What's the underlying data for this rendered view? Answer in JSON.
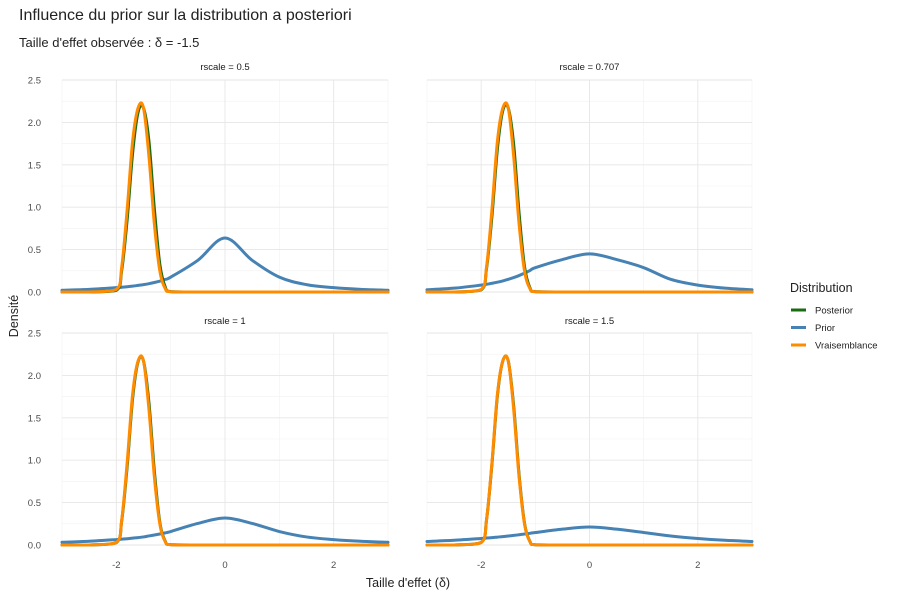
{
  "chart_data": {
    "type": "line",
    "title": "Influence du prior sur la distribution a posteriori",
    "subtitle": "Taille d'effet observée : δ = -1.5",
    "xlabel": "Taille d'effet (δ)",
    "ylabel": "Densité",
    "xlim": [
      -3,
      3
    ],
    "ylim": [
      0,
      2.5
    ],
    "x_ticks": [
      -2,
      0,
      2
    ],
    "y_ticks": [
      0.0,
      0.5,
      1.0,
      1.5,
      2.0,
      2.5
    ],
    "grid": true,
    "legend": {
      "title": "Distribution",
      "position": "right",
      "entries": [
        {
          "name": "Posterior",
          "color": "#1a6b12"
        },
        {
          "name": "Prior",
          "color": "#4682b4"
        },
        {
          "name": "Vraisemblance",
          "color": "#ff8c00"
        }
      ]
    },
    "x": [
      -3.0,
      -2.5,
      -2.0,
      -1.9,
      -1.8,
      -1.7,
      -1.6,
      -1.5,
      -1.4,
      -1.3,
      -1.2,
      -1.1,
      -1.0,
      -0.5,
      0.0,
      0.5,
      1.0,
      1.5,
      2.0,
      2.5,
      3.0
    ],
    "facets": [
      {
        "label": "rscale = 0.5",
        "series": [
          {
            "name": "Prior",
            "values": [
              0.021,
              0.031,
              0.051,
              0.056,
              0.062,
              0.069,
              0.078,
              0.087,
              0.098,
              0.112,
              0.128,
              0.149,
              0.175,
              0.374,
              0.637,
              0.374,
              0.175,
              0.087,
              0.051,
              0.031,
              0.021
            ]
          },
          {
            "name": "Posterior",
            "values": [
              0.0,
              0.0,
              0.02,
              0.26,
              0.86,
              1.64,
              2.12,
              2.17,
              1.78,
              0.98,
              0.33,
              0.06,
              0.005,
              0.0,
              0.0,
              0.0,
              0.0,
              0.0,
              0.0,
              0.0,
              0.0
            ]
          },
          {
            "name": "Vraisemblance",
            "values": [
              0.0,
              0.0,
              0.03,
              0.3,
              0.98,
              1.78,
              2.17,
              2.17,
              1.6,
              0.8,
              0.25,
              0.04,
              0.003,
              0.0,
              0.0,
              0.0,
              0.0,
              0.0,
              0.0,
              0.0,
              0.0
            ]
          }
        ]
      },
      {
        "label": "rscale = 0.707",
        "series": [
          {
            "name": "Prior",
            "values": [
              0.026,
              0.045,
              0.081,
              0.091,
              0.103,
              0.116,
              0.131,
              0.149,
              0.17,
              0.194,
              0.222,
              0.253,
              0.287,
              0.383,
              0.45,
              0.383,
              0.287,
              0.149,
              0.081,
              0.045,
              0.026
            ]
          },
          {
            "name": "Posterior",
            "values": [
              0.0,
              0.0,
              0.025,
              0.28,
              0.9,
              1.69,
              2.14,
              2.17,
              1.74,
              0.93,
              0.3,
              0.05,
              0.004,
              0.0,
              0.0,
              0.0,
              0.0,
              0.0,
              0.0,
              0.0,
              0.0
            ]
          },
          {
            "name": "Vraisemblance",
            "values": [
              0.0,
              0.0,
              0.03,
              0.3,
              0.98,
              1.78,
              2.17,
              2.17,
              1.6,
              0.8,
              0.25,
              0.04,
              0.003,
              0.0,
              0.0,
              0.0,
              0.0,
              0.0,
              0.0,
              0.0,
              0.0
            ]
          }
        ]
      },
      {
        "label": "rscale = 1",
        "series": [
          {
            "name": "Prior",
            "values": [
              0.032,
              0.044,
              0.064,
              0.069,
              0.074,
              0.081,
              0.087,
              0.095,
              0.107,
              0.118,
              0.13,
              0.143,
              0.159,
              0.254,
              0.318,
              0.254,
              0.159,
              0.095,
              0.064,
              0.044,
              0.032
            ]
          },
          {
            "name": "Posterior",
            "values": [
              0.0,
              0.0,
              0.028,
              0.29,
              0.93,
              1.73,
              2.16,
              2.17,
              1.68,
              0.87,
              0.27,
              0.045,
              0.004,
              0.0,
              0.0,
              0.0,
              0.0,
              0.0,
              0.0,
              0.0,
              0.0
            ]
          },
          {
            "name": "Vraisemblance",
            "values": [
              0.0,
              0.0,
              0.03,
              0.3,
              0.98,
              1.78,
              2.17,
              2.17,
              1.6,
              0.8,
              0.25,
              0.04,
              0.003,
              0.0,
              0.0,
              0.0,
              0.0,
              0.0,
              0.0,
              0.0,
              0.0
            ]
          }
        ]
      },
      {
        "label": "rscale = 1.5",
        "series": [
          {
            "name": "Prior",
            "values": [
              0.042,
              0.056,
              0.077,
              0.082,
              0.087,
              0.093,
              0.099,
              0.106,
              0.113,
              0.121,
              0.129,
              0.138,
              0.147,
              0.187,
              0.212,
              0.187,
              0.147,
              0.106,
              0.077,
              0.056,
              0.042
            ]
          },
          {
            "name": "Posterior",
            "values": [
              0.0,
              0.0,
              0.03,
              0.3,
              0.96,
              1.76,
              2.17,
              2.17,
              1.64,
              0.83,
              0.26,
              0.042,
              0.003,
              0.0,
              0.0,
              0.0,
              0.0,
              0.0,
              0.0,
              0.0,
              0.0
            ]
          },
          {
            "name": "Vraisemblance",
            "values": [
              0.0,
              0.0,
              0.03,
              0.3,
              0.98,
              1.78,
              2.17,
              2.17,
              1.6,
              0.8,
              0.25,
              0.04,
              0.003,
              0.0,
              0.0,
              0.0,
              0.0,
              0.0,
              0.0,
              0.0,
              0.0
            ]
          }
        ]
      }
    ]
  }
}
